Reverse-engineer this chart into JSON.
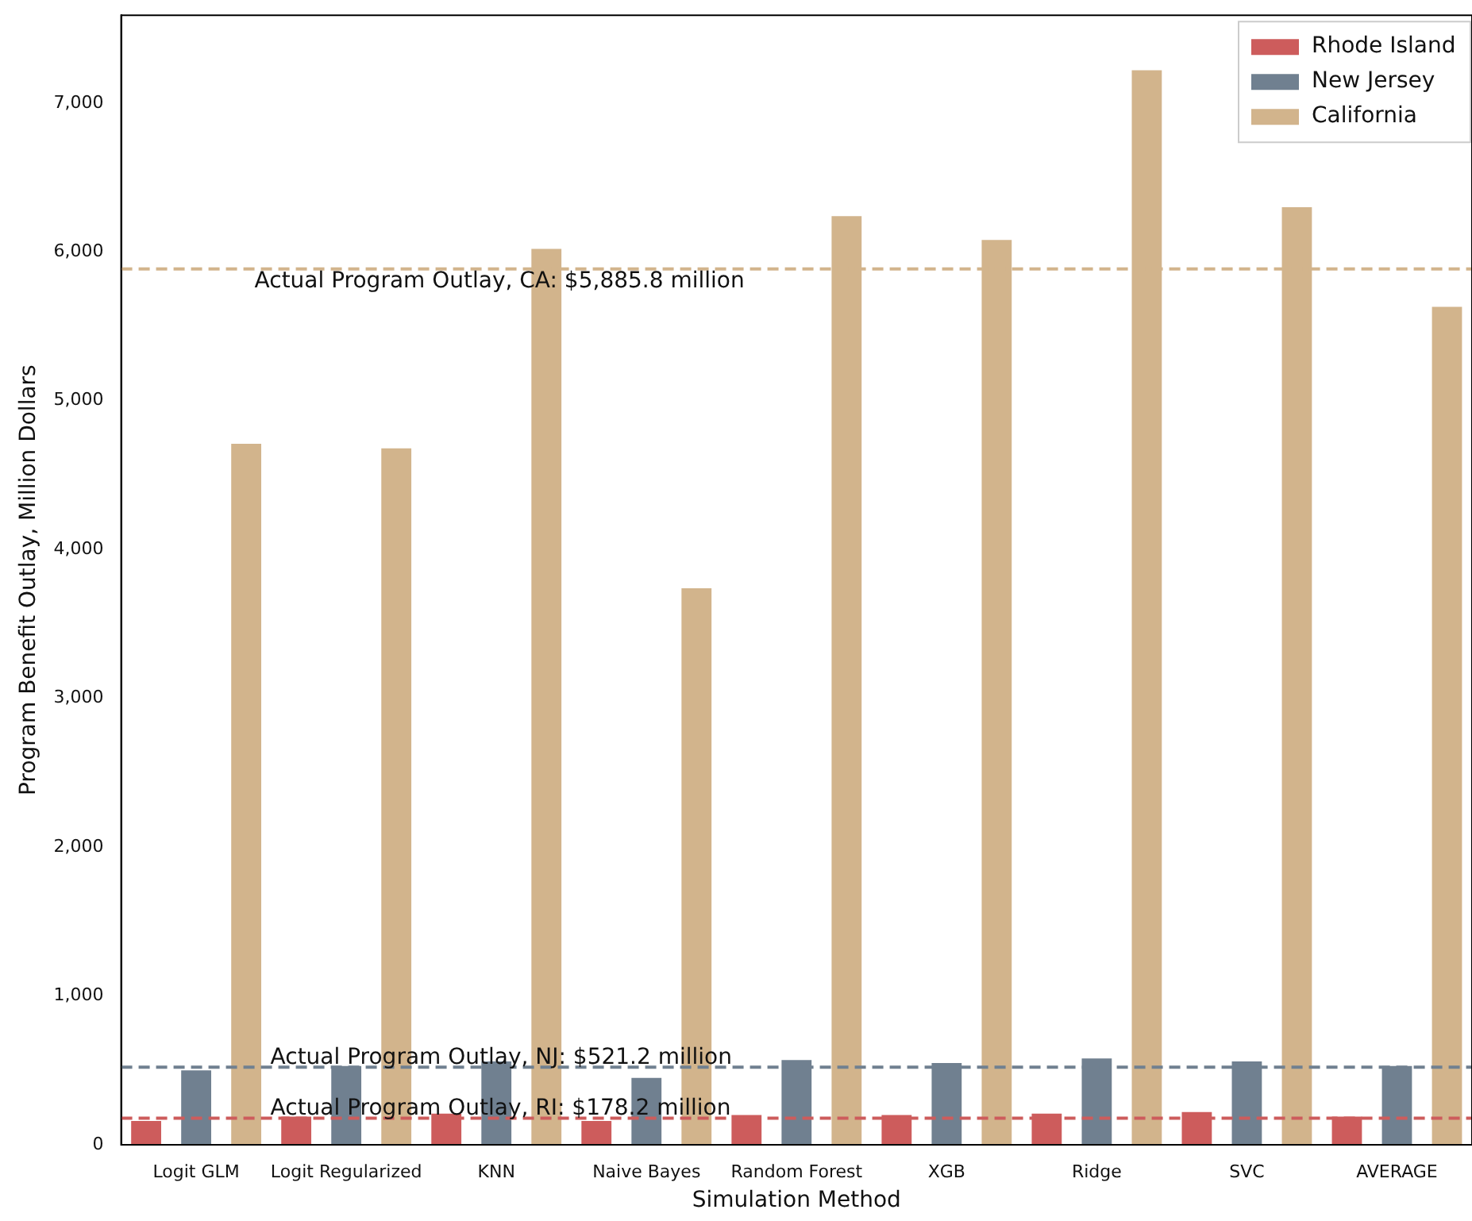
{
  "chart_data": {
    "type": "bar",
    "xlabel": "Simulation Method",
    "ylabel": "Program Benefit Outlay, Million Dollars",
    "categories": [
      "Logit GLM",
      "Logit Regularized",
      "KNN",
      "Naive Bayes",
      "Random Forest",
      "XGB",
      "Ridge",
      "SVC",
      "AVERAGE"
    ],
    "series": [
      {
        "name": "Rhode Island",
        "color": "#cd5c5c",
        "values": [
          160,
          190,
          210,
          160,
          200,
          200,
          210,
          220,
          190
        ]
      },
      {
        "name": "New Jersey",
        "color": "#708090",
        "values": [
          500,
          530,
          560,
          450,
          570,
          550,
          580,
          560,
          530
        ]
      },
      {
        "name": "California",
        "color": "#d2b48c",
        "values": [
          4710,
          4680,
          6020,
          3740,
          6240,
          6080,
          7220,
          6300,
          5630
        ]
      }
    ],
    "ylim": [
      0,
      7590
    ],
    "yticks": [
      {
        "value": 0,
        "label": "0"
      },
      {
        "value": 1000,
        "label": "1,000"
      },
      {
        "value": 2000,
        "label": "2,000"
      },
      {
        "value": 3000,
        "label": "3,000"
      },
      {
        "value": 4000,
        "label": "4,000"
      },
      {
        "value": 5000,
        "label": "5,000"
      },
      {
        "value": 6000,
        "label": "6,000"
      },
      {
        "value": 7000,
        "label": "7,000"
      }
    ],
    "ref_lines": [
      {
        "axis": "y",
        "value": 5885.8,
        "label": "Actual Program Outlay, CA: $5,885.8 million",
        "color": "#d2b48c",
        "line_style": "dashed"
      },
      {
        "axis": "y",
        "value": 521.2,
        "label": "Actual Program Outlay, NJ: $521.2 million",
        "color": "#708090",
        "line_style": "dashed"
      },
      {
        "axis": "y",
        "value": 178.2,
        "label": "Actual Program Outlay, RI: $178.2 million",
        "color": "#cd5c5c",
        "line_style": "dashed"
      }
    ],
    "grid": false,
    "legend": "top right"
  }
}
